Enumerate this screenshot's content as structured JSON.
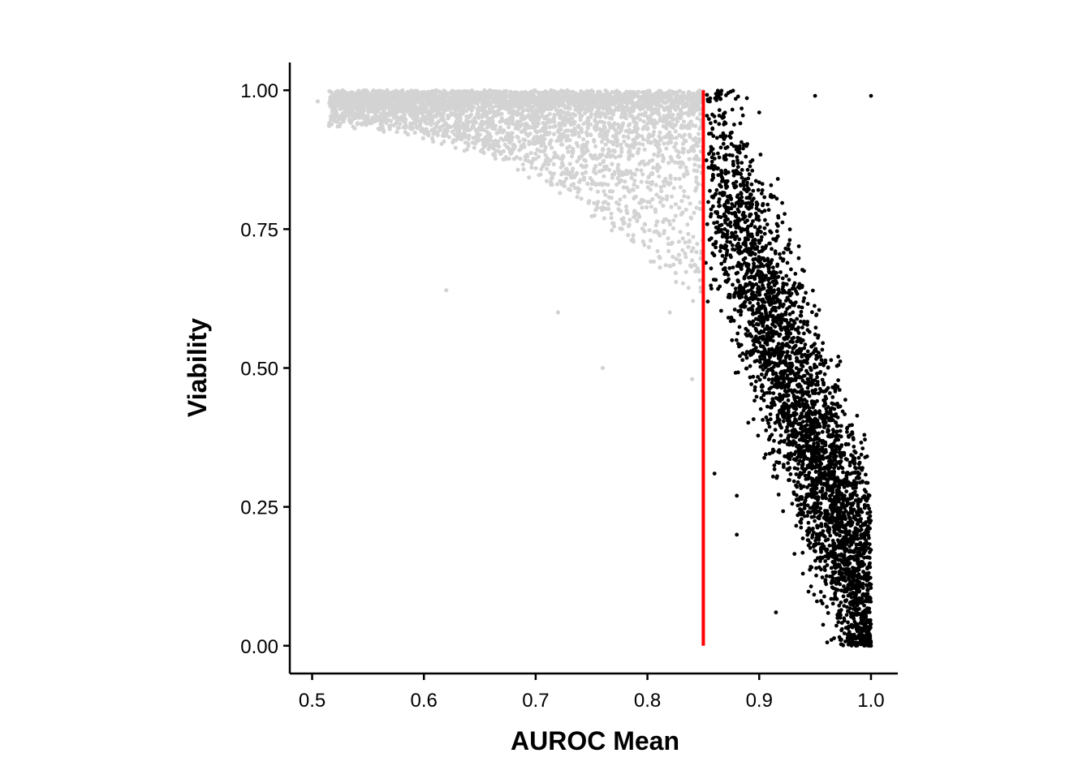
{
  "chart_data": {
    "type": "scatter",
    "title": "",
    "xlabel": "AUROC Mean",
    "ylabel": "Viability",
    "xlim": [
      0.48,
      1.024
    ],
    "ylim": [
      -0.05,
      1.05
    ],
    "x_ticks": [
      0.5,
      0.6,
      0.7,
      0.8,
      0.9,
      1.0
    ],
    "x_tick_labels": [
      "0.5",
      "0.6",
      "0.7",
      "0.8",
      "0.9",
      "1.0"
    ],
    "y_ticks": [
      0.0,
      0.25,
      0.5,
      0.75,
      1.0
    ],
    "y_tick_labels": [
      "0.00",
      "0.25",
      "0.50",
      "0.75",
      "1.00"
    ],
    "grid": false,
    "legend": "none",
    "threshold_line": {
      "x": 0.85,
      "y_range": [
        0.0,
        1.0
      ],
      "color": "#ff0000"
    },
    "colors": {
      "below_threshold": "#d3d3d3",
      "above_threshold": "#000000",
      "axis": "#000000"
    },
    "series": [
      {
        "x_range": [
          0.5,
          0.85
        ],
        "y_range": [
          0.47,
          1.0
        ],
        "approx_count": 4000,
        "color": "#d3d3d3",
        "sample_points": [
          [
            0.505,
            0.98
          ],
          [
            0.52,
            0.96
          ],
          [
            0.55,
            0.99
          ],
          [
            0.6,
            0.97
          ],
          [
            0.62,
            0.64
          ],
          [
            0.65,
            0.92
          ],
          [
            0.7,
            0.95
          ],
          [
            0.72,
            0.6
          ],
          [
            0.75,
            0.88
          ],
          [
            0.76,
            0.5
          ],
          [
            0.8,
            0.93
          ],
          [
            0.82,
            0.6
          ],
          [
            0.84,
            0.48
          ],
          [
            0.845,
            0.9
          ]
        ]
      },
      {
        "x_range": [
          0.85,
          1.0
        ],
        "y_range": [
          0.0,
          1.0
        ],
        "approx_count": 3500,
        "color": "#000000",
        "sample_points": [
          [
            0.855,
            0.98
          ],
          [
            0.86,
            0.31
          ],
          [
            0.87,
            0.85
          ],
          [
            0.88,
            0.27
          ],
          [
            0.88,
            0.2
          ],
          [
            0.9,
            0.96
          ],
          [
            0.9,
            0.6
          ],
          [
            0.915,
            0.06
          ],
          [
            0.93,
            0.4
          ],
          [
            0.95,
            0.99
          ],
          [
            0.96,
            0.3
          ],
          [
            0.97,
            0.05
          ],
          [
            0.98,
            0.15
          ],
          [
            0.99,
            0.02
          ],
          [
            1.0,
            0.99
          ],
          [
            1.0,
            0.0
          ]
        ]
      }
    ]
  }
}
